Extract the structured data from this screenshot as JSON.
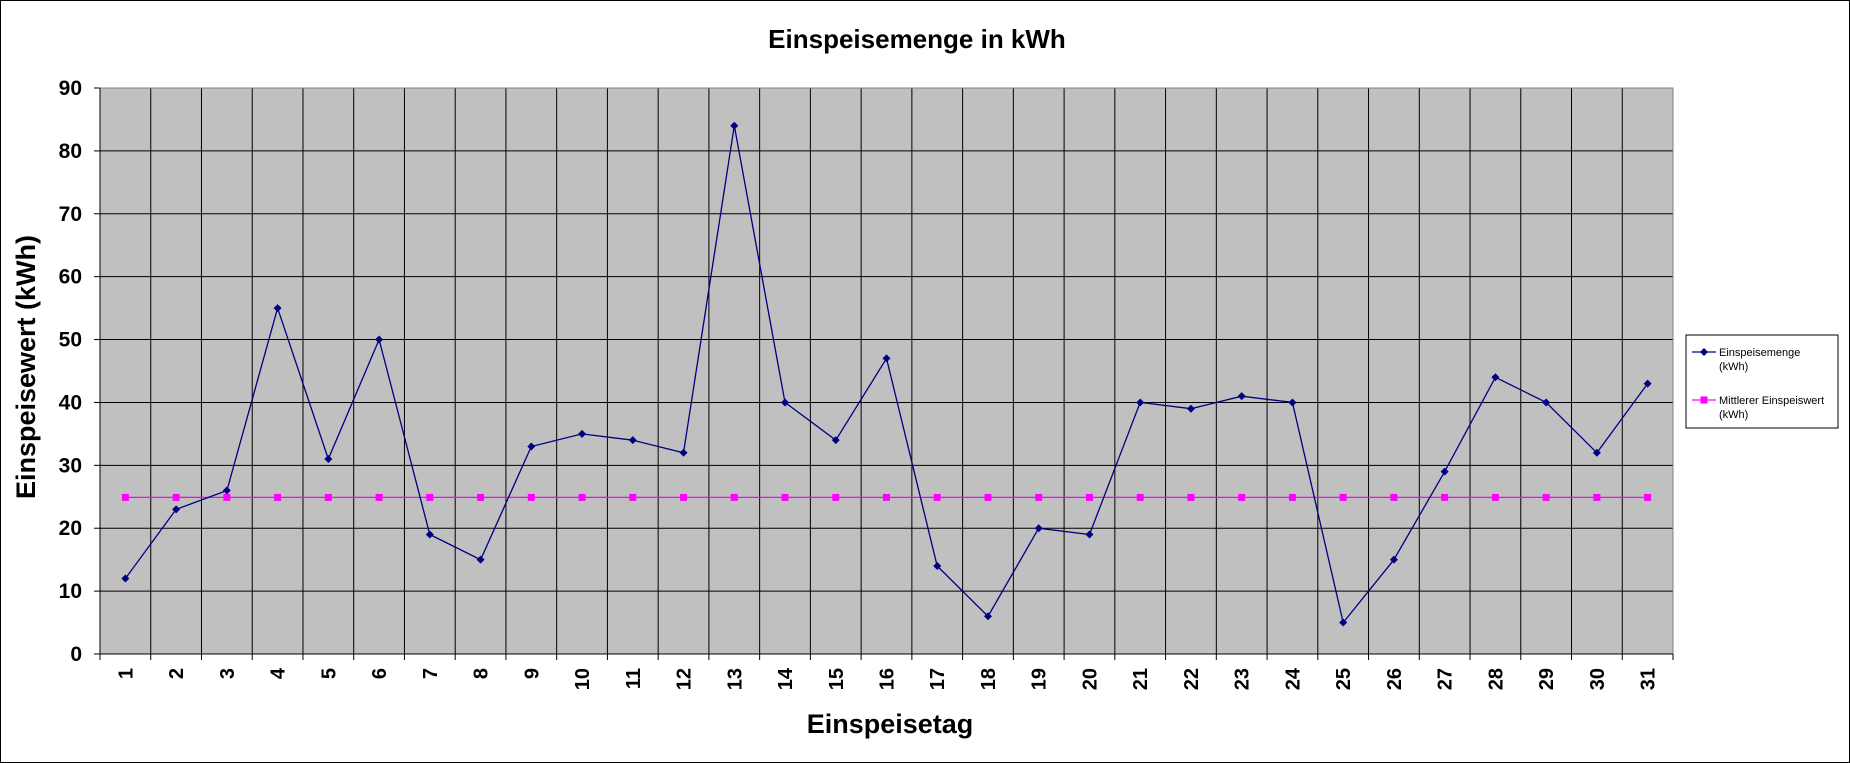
{
  "chart_data": {
    "type": "line",
    "title": "Einspeisemenge in kWh",
    "xlabel": "Einspeisetag",
    "ylabel": "Einspeisewert  (kWh)",
    "ylim": [
      0,
      90
    ],
    "yticks": [
      "0",
      "10",
      "20",
      "30",
      "40",
      "50",
      "60",
      "70",
      "80",
      "90"
    ],
    "categories": [
      "1",
      "2",
      "3",
      "4",
      "5",
      "6",
      "7",
      "8",
      "9",
      "10",
      "11",
      "12",
      "13",
      "14",
      "15",
      "16",
      "17",
      "18",
      "19",
      "20",
      "21",
      "22",
      "23",
      "24",
      "25",
      "26",
      "27",
      "28",
      "29",
      "30",
      "31"
    ],
    "grid": true,
    "legend_position": "right",
    "background_color": "#c0c0c0",
    "series": [
      {
        "name": "Einspeisemenge (kWh)",
        "legend_lines": [
          "Einspeisemenge",
          "(kWh)"
        ],
        "color": "#000080",
        "marker": "diamond",
        "values": [
          12,
          23,
          26,
          55,
          31,
          50,
          19,
          15,
          33,
          35,
          34,
          32,
          84,
          40,
          34,
          47,
          14,
          6,
          20,
          19,
          40,
          39,
          41,
          40,
          5,
          15,
          29,
          44,
          40,
          32,
          43
        ]
      },
      {
        "name": "Mittlerer Einspeiswert (kWh)",
        "legend_lines": [
          "Mittlerer Einspeiswert",
          "(kWh)"
        ],
        "color": "#ff00ff",
        "marker": "square",
        "values": [
          24.9,
          24.9,
          24.9,
          24.9,
          24.9,
          24.9,
          24.9,
          24.9,
          24.9,
          24.9,
          24.9,
          24.9,
          24.9,
          24.9,
          24.9,
          24.9,
          24.9,
          24.9,
          24.9,
          24.9,
          24.9,
          24.9,
          24.9,
          24.9,
          24.9,
          24.9,
          24.9,
          24.9,
          24.9,
          24.9,
          24.9
        ]
      }
    ]
  }
}
